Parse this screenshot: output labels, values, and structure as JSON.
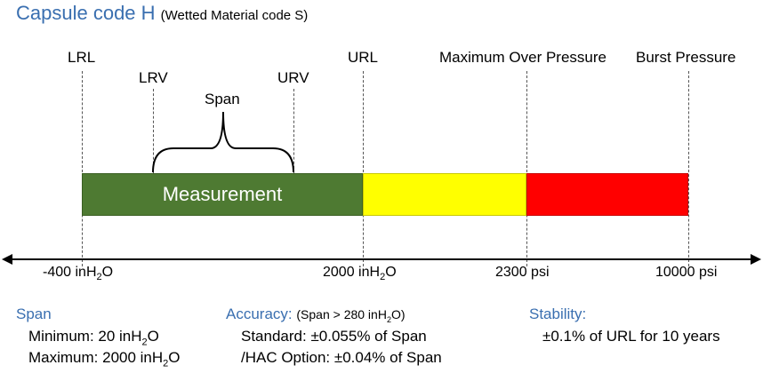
{
  "title": {
    "main": "Capsule code H",
    "sub": "(Wetted Material code S)"
  },
  "markers": {
    "lrl": "LRL",
    "lrv": "LRV",
    "span": "Span",
    "urv": "URV",
    "url": "URL",
    "max_over_pressure": "Maximum Over Pressure",
    "burst_pressure": "Burst Pressure"
  },
  "bars": {
    "measurement_label": "Measurement",
    "measurement_color": "#4e7a32",
    "overpressure_color": "#ffff00",
    "burst_color": "#ff0000"
  },
  "axis": {
    "ticks": [
      {
        "value": "-400",
        "unit": "inH",
        "sub": "2",
        "suffix": "O"
      },
      {
        "value": "2000",
        "unit": "inH",
        "sub": "2",
        "suffix": "O"
      },
      {
        "value": "2300",
        "unit": "psi",
        "sub": "",
        "suffix": ""
      },
      {
        "value": "10000",
        "unit": "psi",
        "sub": "",
        "suffix": ""
      }
    ]
  },
  "span_section": {
    "heading": "Span",
    "min_label": "Minimum: 20 inH",
    "min_sub": "2",
    "min_suffix": "O",
    "max_label": "Maximum: 2000 inH",
    "max_sub": "2",
    "max_suffix": "O"
  },
  "accuracy_section": {
    "heading": "Accuracy:",
    "condition_prefix": "(Span > 280 inH",
    "condition_sub": "2",
    "condition_suffix": "O)",
    "standard": "Standard: ±0.055% of Span",
    "hac": "/HAC Option: ±0.04% of Span"
  },
  "stability_section": {
    "heading": "Stability:",
    "value": "±0.1% of URL for 10 years"
  }
}
